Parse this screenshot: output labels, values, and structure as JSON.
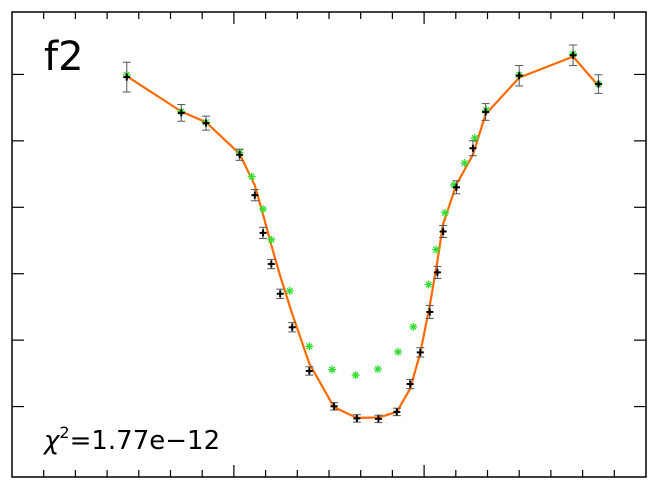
{
  "chart_data": {
    "type": "scatter",
    "panel_label": "f2",
    "annotation": {
      "symbol": "χ",
      "exponent": "2",
      "text": "=1.77e−12"
    },
    "xlim": [
      0,
      100
    ],
    "ylim": [
      0,
      100
    ],
    "grid": false,
    "colors": {
      "observed": "#000000",
      "error_bar": "#555555",
      "model": "#ff6a00",
      "alternative": "#33dd33",
      "frame": "#000000"
    },
    "series": [
      {
        "role": "observed",
        "marker": "plus",
        "points": [
          {
            "x": 18.1,
            "y": 86.0,
            "err": 3.2
          },
          {
            "x": 26.7,
            "y": 78.3,
            "err": 1.8
          },
          {
            "x": 30.6,
            "y": 76.1,
            "err": 1.5
          },
          {
            "x": 35.9,
            "y": 69.3,
            "err": 1.2
          },
          {
            "x": 38.3,
            "y": 60.6,
            "err": 1.2
          },
          {
            "x": 39.6,
            "y": 52.5,
            "err": 1.2
          },
          {
            "x": 40.9,
            "y": 45.8,
            "err": 1.0
          },
          {
            "x": 42.3,
            "y": 39.4,
            "err": 1.0
          },
          {
            "x": 44.2,
            "y": 32.2,
            "err": 1.0
          },
          {
            "x": 46.9,
            "y": 22.8,
            "err": 0.9
          },
          {
            "x": 50.8,
            "y": 15.2,
            "err": 0.8
          },
          {
            "x": 54.4,
            "y": 12.6,
            "err": 0.8
          },
          {
            "x": 57.8,
            "y": 12.5,
            "err": 0.8
          },
          {
            "x": 60.7,
            "y": 14.0,
            "err": 0.8
          },
          {
            "x": 62.8,
            "y": 20.0,
            "err": 1.0
          },
          {
            "x": 64.4,
            "y": 26.8,
            "err": 1.0
          },
          {
            "x": 65.9,
            "y": 35.5,
            "err": 1.4
          },
          {
            "x": 67.1,
            "y": 44.0,
            "err": 1.3
          },
          {
            "x": 68.0,
            "y": 52.8,
            "err": 1.3
          },
          {
            "x": 70.1,
            "y": 62.3,
            "err": 1.4
          },
          {
            "x": 72.7,
            "y": 70.7,
            "err": 1.6
          },
          {
            "x": 74.7,
            "y": 78.5,
            "err": 1.8
          },
          {
            "x": 80.0,
            "y": 86.3,
            "err": 2.2
          },
          {
            "x": 88.5,
            "y": 90.7,
            "err": 2.2
          },
          {
            "x": 92.5,
            "y": 84.5,
            "err": 2.0
          }
        ]
      },
      {
        "role": "model",
        "style": "line",
        "points": [
          {
            "x": 18.1,
            "y": 86.2
          },
          {
            "x": 26.7,
            "y": 78.6
          },
          {
            "x": 30.6,
            "y": 76.3
          },
          {
            "x": 35.9,
            "y": 69.5
          },
          {
            "x": 38.3,
            "y": 62.7
          },
          {
            "x": 39.6,
            "y": 56.4
          },
          {
            "x": 40.9,
            "y": 49.9
          },
          {
            "x": 42.3,
            "y": 43.2
          },
          {
            "x": 44.2,
            "y": 35.1
          },
          {
            "x": 46.9,
            "y": 24.4
          },
          {
            "x": 50.8,
            "y": 15.0
          },
          {
            "x": 54.4,
            "y": 12.7
          },
          {
            "x": 57.8,
            "y": 12.8
          },
          {
            "x": 60.7,
            "y": 14.0
          },
          {
            "x": 62.8,
            "y": 19.0
          },
          {
            "x": 64.4,
            "y": 26.7
          },
          {
            "x": 65.9,
            "y": 36.9
          },
          {
            "x": 67.1,
            "y": 46.4
          },
          {
            "x": 68.0,
            "y": 54.4
          },
          {
            "x": 70.1,
            "y": 62.9
          },
          {
            "x": 72.7,
            "y": 69.3
          },
          {
            "x": 74.7,
            "y": 78.0
          },
          {
            "x": 80.0,
            "y": 85.9
          },
          {
            "x": 88.5,
            "y": 90.4
          },
          {
            "x": 92.5,
            "y": 84.1
          }
        ]
      },
      {
        "role": "alternative",
        "marker": "asterisk",
        "points": [
          {
            "x": 18.1,
            "y": 86.5
          },
          {
            "x": 26.7,
            "y": 78.6
          },
          {
            "x": 30.6,
            "y": 76.3
          },
          {
            "x": 35.9,
            "y": 69.8
          },
          {
            "x": 37.8,
            "y": 64.6
          },
          {
            "x": 39.6,
            "y": 57.6
          },
          {
            "x": 40.9,
            "y": 51.0
          },
          {
            "x": 43.8,
            "y": 40.0
          },
          {
            "x": 46.9,
            "y": 28.1
          },
          {
            "x": 50.5,
            "y": 23.1
          },
          {
            "x": 54.2,
            "y": 21.9
          },
          {
            "x": 57.7,
            "y": 23.2
          },
          {
            "x": 60.9,
            "y": 26.9
          },
          {
            "x": 63.3,
            "y": 32.3
          },
          {
            "x": 65.7,
            "y": 41.4
          },
          {
            "x": 66.9,
            "y": 48.9
          },
          {
            "x": 68.3,
            "y": 56.8
          },
          {
            "x": 69.7,
            "y": 62.8
          },
          {
            "x": 71.4,
            "y": 67.5
          },
          {
            "x": 73.0,
            "y": 72.9
          },
          {
            "x": 74.8,
            "y": 78.9
          },
          {
            "x": 80.0,
            "y": 86.5
          },
          {
            "x": 88.5,
            "y": 91.0
          },
          {
            "x": 92.5,
            "y": 84.5
          }
        ]
      }
    ]
  }
}
